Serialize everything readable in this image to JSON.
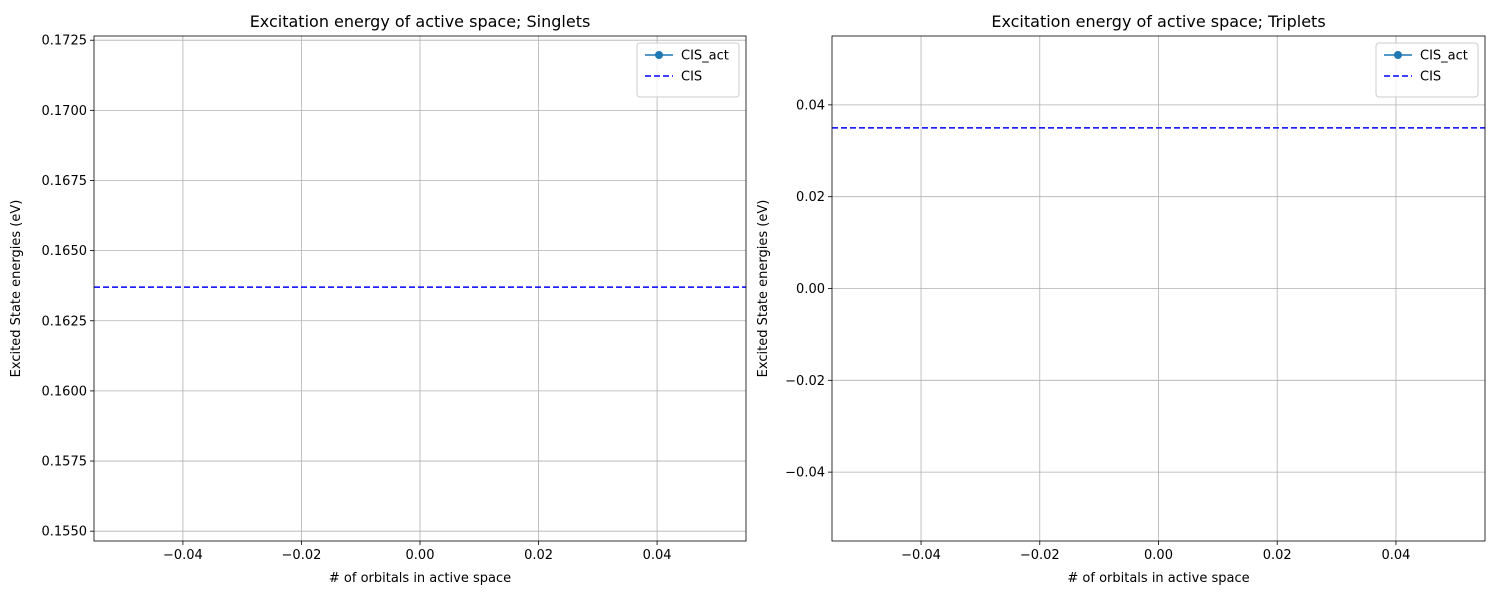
{
  "chart_data": [
    {
      "type": "line",
      "title": "Excitation energy of active space; Singlets",
      "xlabel": "# of orbitals in active space",
      "ylabel": "Excited State energies (eV)",
      "xlim": [
        -0.055,
        0.055
      ],
      "ylim": [
        0.15465,
        0.17265
      ],
      "xticks": [
        -0.04,
        -0.02,
        0.0,
        0.02,
        0.04
      ],
      "xtick_labels": [
        "−0.04",
        "−0.02",
        "0.00",
        "0.02",
        "0.04"
      ],
      "yticks": [
        0.155,
        0.1575,
        0.16,
        0.1625,
        0.165,
        0.1675,
        0.17,
        0.1725
      ],
      "ytick_labels": [
        "0.1550",
        "0.1575",
        "0.1600",
        "0.1625",
        "0.1650",
        "0.1675",
        "0.1700",
        "0.1725"
      ],
      "grid": true,
      "legend_position": "top-right",
      "series": [
        {
          "name": "CIS_act",
          "style": "line-marker",
          "color": "#1f77b4",
          "x": [],
          "y": []
        },
        {
          "name": "CIS",
          "style": "dashed-hline",
          "color": "#0000ff",
          "y": 0.1637
        }
      ]
    },
    {
      "type": "line",
      "title": "Excitation energy of active space; Triplets",
      "xlabel": "# of orbitals in active space",
      "ylabel": "Excited State energies (eV)",
      "xlim": [
        -0.055,
        0.055
      ],
      "ylim": [
        -0.055,
        0.055
      ],
      "xticks": [
        -0.04,
        -0.02,
        0.0,
        0.02,
        0.04
      ],
      "xtick_labels": [
        "−0.04",
        "−0.02",
        "0.00",
        "0.02",
        "0.04"
      ],
      "yticks": [
        -0.04,
        -0.02,
        0.0,
        0.02,
        0.04
      ],
      "ytick_labels": [
        "−0.04",
        "−0.02",
        "0.00",
        "0.02",
        "0.04"
      ],
      "grid": true,
      "legend_position": "top-right",
      "series": [
        {
          "name": "CIS_act",
          "style": "line-marker",
          "color": "#1f77b4",
          "x": [],
          "y": []
        },
        {
          "name": "CIS",
          "style": "dashed-hline",
          "color": "#0000ff",
          "y": 0.035
        }
      ]
    }
  ]
}
